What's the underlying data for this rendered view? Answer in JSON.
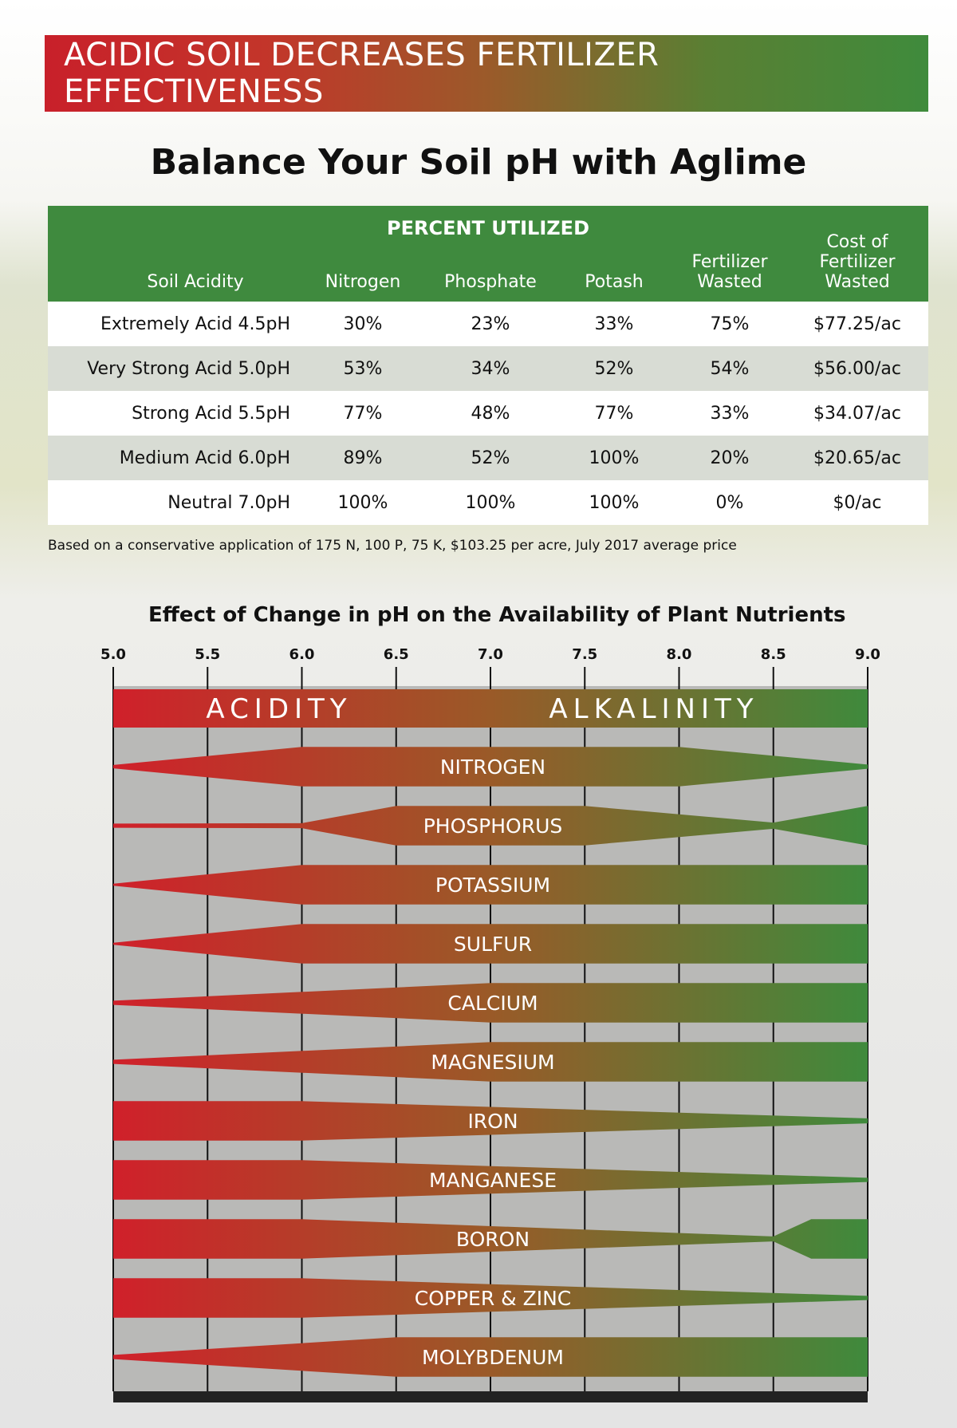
{
  "banner": {
    "title": "ACIDIC SOIL DECREASES FERTILIZER EFFECTIVENESS"
  },
  "subtitle": "Balance Your Soil pH with Aglime",
  "table": {
    "group_header": "PERCENT UTILIZED",
    "columns": [
      {
        "label": "Soil Acidity"
      },
      {
        "label": "Nitrogen"
      },
      {
        "label": "Phosphate"
      },
      {
        "label": "Potash"
      },
      {
        "label": "Fertilizer Wasted"
      },
      {
        "label": "Cost of Fertilizer Wasted"
      }
    ],
    "rows": [
      [
        "Extremely Acid 4.5pH",
        "30%",
        "23%",
        "33%",
        "75%",
        "$77.25/ac"
      ],
      [
        "Very Strong Acid 5.0pH",
        "53%",
        "34%",
        "52%",
        "54%",
        "$56.00/ac"
      ],
      [
        "Strong Acid 5.5pH",
        "77%",
        "48%",
        "77%",
        "33%",
        "$34.07/ac"
      ],
      [
        "Medium Acid 6.0pH",
        "89%",
        "52%",
        "100%",
        "20%",
        "$20.65/ac"
      ],
      [
        "Neutral 7.0pH",
        "100%",
        "100%",
        "100%",
        "0%",
        "$0/ac"
      ]
    ],
    "footnote": "Based on a conservative application of 175 N, 100 P, 75 K, $103.25 per acre, July 2017 average price"
  },
  "colors": {
    "acid_red": "#d0202a",
    "mid_brown": "#9a5a28",
    "alkaline_green": "#3f8a3c",
    "table_header_green": "#3f8a3e",
    "table_alt_row": "#d8dcd4"
  },
  "chart_data": {
    "type": "area",
    "title": "Effect of Change in pH on the Availability of Plant Nutrients",
    "x_ticks": [
      "5.0",
      "5.5",
      "6.0",
      "6.5",
      "7.0",
      "7.5",
      "8.0",
      "8.5",
      "9.0"
    ],
    "xlim": [
      5.0,
      9.0
    ],
    "header_left": "ACIDITY",
    "header_right": "ALKALINITY",
    "availability_scale": "relative band thickness, 0 to 1",
    "nutrients": [
      {
        "name": "NITROGEN",
        "ph": [
          5.0,
          6.0,
          8.0,
          9.0
        ],
        "availability": [
          0.08,
          0.95,
          0.95,
          0.1
        ]
      },
      {
        "name": "PHOSPHORUS",
        "ph": [
          5.0,
          6.0,
          6.5,
          7.5,
          8.5,
          9.0
        ],
        "availability": [
          0.1,
          0.12,
          0.95,
          0.95,
          0.15,
          0.95
        ]
      },
      {
        "name": "POTASSIUM",
        "ph": [
          5.0,
          6.0,
          9.0
        ],
        "availability": [
          0.05,
          0.95,
          0.95
        ]
      },
      {
        "name": "SULFUR",
        "ph": [
          5.0,
          6.0,
          9.0
        ],
        "availability": [
          0.05,
          0.95,
          0.95
        ]
      },
      {
        "name": "CALCIUM",
        "ph": [
          5.0,
          7.0,
          9.0
        ],
        "availability": [
          0.1,
          0.95,
          0.95
        ]
      },
      {
        "name": "MAGNESIUM",
        "ph": [
          5.0,
          7.0,
          9.0
        ],
        "availability": [
          0.1,
          0.95,
          0.95
        ]
      },
      {
        "name": "IRON",
        "ph": [
          5.0,
          6.0,
          9.0
        ],
        "availability": [
          0.95,
          0.95,
          0.12
        ]
      },
      {
        "name": "MANGANESE",
        "ph": [
          5.0,
          6.0,
          9.0
        ],
        "availability": [
          0.95,
          0.95,
          0.1
        ]
      },
      {
        "name": "BORON",
        "ph": [
          5.0,
          6.0,
          8.5,
          8.7,
          9.0
        ],
        "availability": [
          0.95,
          0.95,
          0.12,
          0.95,
          0.95
        ]
      },
      {
        "name": "COPPER & ZINC",
        "ph": [
          5.0,
          6.0,
          9.0
        ],
        "availability": [
          0.95,
          0.95,
          0.1
        ]
      },
      {
        "name": "MOLYBDENUM",
        "ph": [
          5.0,
          6.5,
          9.0
        ],
        "availability": [
          0.1,
          0.95,
          0.95
        ]
      }
    ]
  }
}
